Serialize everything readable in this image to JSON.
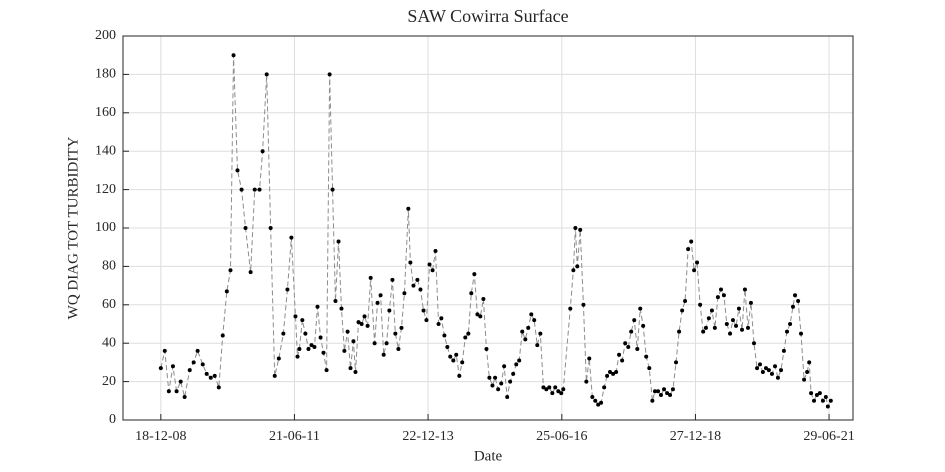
{
  "chart_data": {
    "type": "line",
    "title": "SAW Cowirra Surface",
    "xlabel": "Date",
    "ylabel": "WQ DIAG TOT TURBIDITY",
    "x": [
      "2008-12-18",
      "2009-01-14",
      "2009-02-11",
      "2009-03-11",
      "2009-04-05",
      "2009-05-03",
      "2009-05-30",
      "2009-07-04",
      "2009-07-31",
      "2009-08-27",
      "2009-10-01",
      "2009-10-28",
      "2009-11-25",
      "2009-12-22",
      "2010-01-19",
      "2010-02-15",
      "2010-03-15",
      "2010-04-09",
      "2010-04-30",
      "2010-05-27",
      "2010-06-24",
      "2010-07-21",
      "2010-08-25",
      "2010-09-22",
      "2010-10-25",
      "2010-11-15",
      "2010-12-13",
      "2011-01-09",
      "2011-02-06",
      "2011-03-06",
      "2011-04-06",
      "2011-05-04",
      "2011-05-31",
      "2011-06-28",
      "2011-07-12",
      "2011-07-25",
      "2011-08-14",
      "2011-09-04",
      "2011-09-25",
      "2011-10-16",
      "2011-11-05",
      "2011-11-26",
      "2011-12-17",
      "2012-01-06",
      "2012-01-27",
      "2012-02-17",
      "2012-03-08",
      "2012-03-28",
      "2012-04-18",
      "2012-05-08",
      "2012-05-28",
      "2012-06-19",
      "2012-07-09",
      "2012-07-29",
      "2012-08-12",
      "2012-09-02",
      "2012-09-23",
      "2012-10-13",
      "2012-11-03",
      "2012-11-24",
      "2012-12-21",
      "2013-01-10",
      "2013-01-31",
      "2013-02-21",
      "2013-03-13",
      "2013-04-01",
      "2013-04-22",
      "2013-05-12",
      "2013-06-02",
      "2013-06-23",
      "2013-07-13",
      "2013-08-09",
      "2013-08-23",
      "2013-09-13",
      "2013-10-10",
      "2013-10-31",
      "2013-11-21",
      "2013-12-11",
      "2014-01-01",
      "2014-01-22",
      "2014-02-11",
      "2014-03-04",
      "2014-03-23",
      "2014-04-13",
      "2014-05-03",
      "2014-05-23",
      "2014-06-13",
      "2014-07-03",
      "2014-07-24",
      "2014-08-13",
      "2014-09-03",
      "2014-09-24",
      "2014-10-14",
      "2014-11-04",
      "2014-11-25",
      "2014-12-15",
      "2015-01-05",
      "2015-01-26",
      "2015-02-15",
      "2015-03-08",
      "2015-03-26",
      "2015-04-16",
      "2015-05-07",
      "2015-05-27",
      "2015-06-17",
      "2015-07-07",
      "2015-07-28",
      "2015-08-18",
      "2015-09-07",
      "2015-09-28",
      "2015-10-19",
      "2015-11-08",
      "2015-11-29",
      "2015-12-19",
      "2016-01-09",
      "2016-01-30",
      "2016-02-20",
      "2016-03-11",
      "2016-03-31",
      "2016-04-21",
      "2016-05-11",
      "2016-06-01",
      "2016-06-21",
      "2016-07-05",
      "2016-08-22",
      "2016-09-12",
      "2016-09-26",
      "2016-10-09",
      "2016-10-29",
      "2016-11-20",
      "2016-12-10",
      "2016-12-30",
      "2017-01-20",
      "2017-02-09",
      "2017-03-01",
      "2017-03-21",
      "2017-04-11",
      "2017-05-01",
      "2017-05-21",
      "2017-06-11",
      "2017-07-02",
      "2017-07-22",
      "2017-08-12",
      "2017-09-02",
      "2017-09-23",
      "2017-10-13",
      "2017-11-03",
      "2017-11-24",
      "2017-12-14",
      "2018-01-03",
      "2018-01-24",
      "2018-02-14",
      "2018-03-07",
      "2018-03-25",
      "2018-04-15",
      "2018-05-05",
      "2018-05-26",
      "2018-06-16",
      "2018-07-06",
      "2018-07-26",
      "2018-08-16",
      "2018-09-06",
      "2018-09-27",
      "2018-10-17",
      "2018-11-07",
      "2018-11-28",
      "2018-12-18",
      "2019-01-07",
      "2019-01-28",
      "2019-02-18",
      "2019-03-09",
      "2019-03-29",
      "2019-04-19",
      "2019-05-09",
      "2019-05-30",
      "2019-06-20",
      "2019-07-10",
      "2019-07-30",
      "2019-08-21",
      "2019-09-10",
      "2019-10-01",
      "2019-10-21",
      "2019-11-11",
      "2019-12-01",
      "2019-12-22",
      "2020-01-11",
      "2020-02-01",
      "2020-02-22",
      "2020-03-13",
      "2020-04-02",
      "2020-04-23",
      "2020-05-13",
      "2020-06-03",
      "2020-06-24",
      "2020-07-14",
      "2020-08-04",
      "2020-08-24",
      "2020-09-14",
      "2020-10-05",
      "2020-10-25",
      "2020-11-08",
      "2020-11-29",
      "2020-12-19",
      "2021-01-09",
      "2021-01-30",
      "2021-02-13",
      "2021-02-26",
      "2021-03-18",
      "2021-04-07",
      "2021-04-27",
      "2021-05-18",
      "2021-06-07",
      "2021-06-21",
      "2021-07-11"
    ],
    "values": [
      27,
      36,
      15,
      28,
      15,
      20,
      12,
      26,
      30,
      36,
      29,
      24,
      22,
      23,
      17,
      44,
      67,
      78,
      190,
      130,
      120,
      100,
      77,
      120,
      120,
      140,
      180,
      100,
      23,
      32,
      45,
      68,
      95,
      54,
      33,
      37,
      52,
      45,
      37,
      39,
      38,
      59,
      43,
      35,
      26,
      180,
      120,
      62,
      93,
      58,
      36,
      46,
      27,
      41,
      25,
      51,
      50,
      54,
      49,
      74,
      40,
      61,
      65,
      34,
      40,
      57,
      73,
      45,
      37,
      48,
      66,
      110,
      82,
      70,
      73,
      68,
      57,
      52,
      81,
      78,
      88,
      50,
      53,
      44,
      38,
      33,
      31,
      34,
      23,
      30,
      43,
      45,
      66,
      76,
      55,
      54,
      63,
      37,
      22,
      18,
      22,
      16,
      19,
      28,
      12,
      20,
      24,
      29,
      31,
      46,
      42,
      48,
      55,
      52,
      39,
      45,
      17,
      16,
      17,
      14,
      17,
      15,
      14,
      16,
      58,
      78,
      100,
      80,
      99,
      60,
      20,
      32,
      12,
      10,
      8,
      9,
      17,
      23,
      25,
      24,
      25,
      34,
      31,
      40,
      38,
      46,
      52,
      37,
      58,
      49,
      33,
      27,
      10,
      15,
      15,
      13,
      16,
      14,
      13,
      16,
      30,
      46,
      57,
      62,
      89,
      93,
      78,
      82,
      60,
      46,
      48,
      53,
      57,
      48,
      64,
      68,
      65,
      50,
      45,
      52,
      49,
      58,
      47,
      68,
      48,
      61,
      40,
      27,
      29,
      25,
      27,
      26,
      24,
      28,
      22,
      26,
      36,
      46,
      50,
      59,
      65,
      62,
      45,
      21,
      25,
      30,
      14,
      10,
      13,
      14,
      10,
      12,
      7,
      10
    ],
    "color": "#000000",
    "line_color": "#8c8c8c",
    "xlim": [
      "2008-04-03",
      "2021-12-10"
    ],
    "xticks": [
      {
        "value": "2008-12-18",
        "label": "18-12-08"
      },
      {
        "value": "2011-06-21",
        "label": "21-06-11"
      },
      {
        "value": "2013-12-22",
        "label": "22-12-13"
      },
      {
        "value": "2016-06-25",
        "label": "25-06-16"
      },
      {
        "value": "2018-12-27",
        "label": "27-12-18"
      },
      {
        "value": "2021-06-29",
        "label": "29-06-21"
      }
    ],
    "ylim": [
      0,
      200
    ],
    "yticks": [
      0,
      20,
      40,
      60,
      80,
      100,
      120,
      140,
      160,
      180,
      200
    ],
    "grid": true
  }
}
